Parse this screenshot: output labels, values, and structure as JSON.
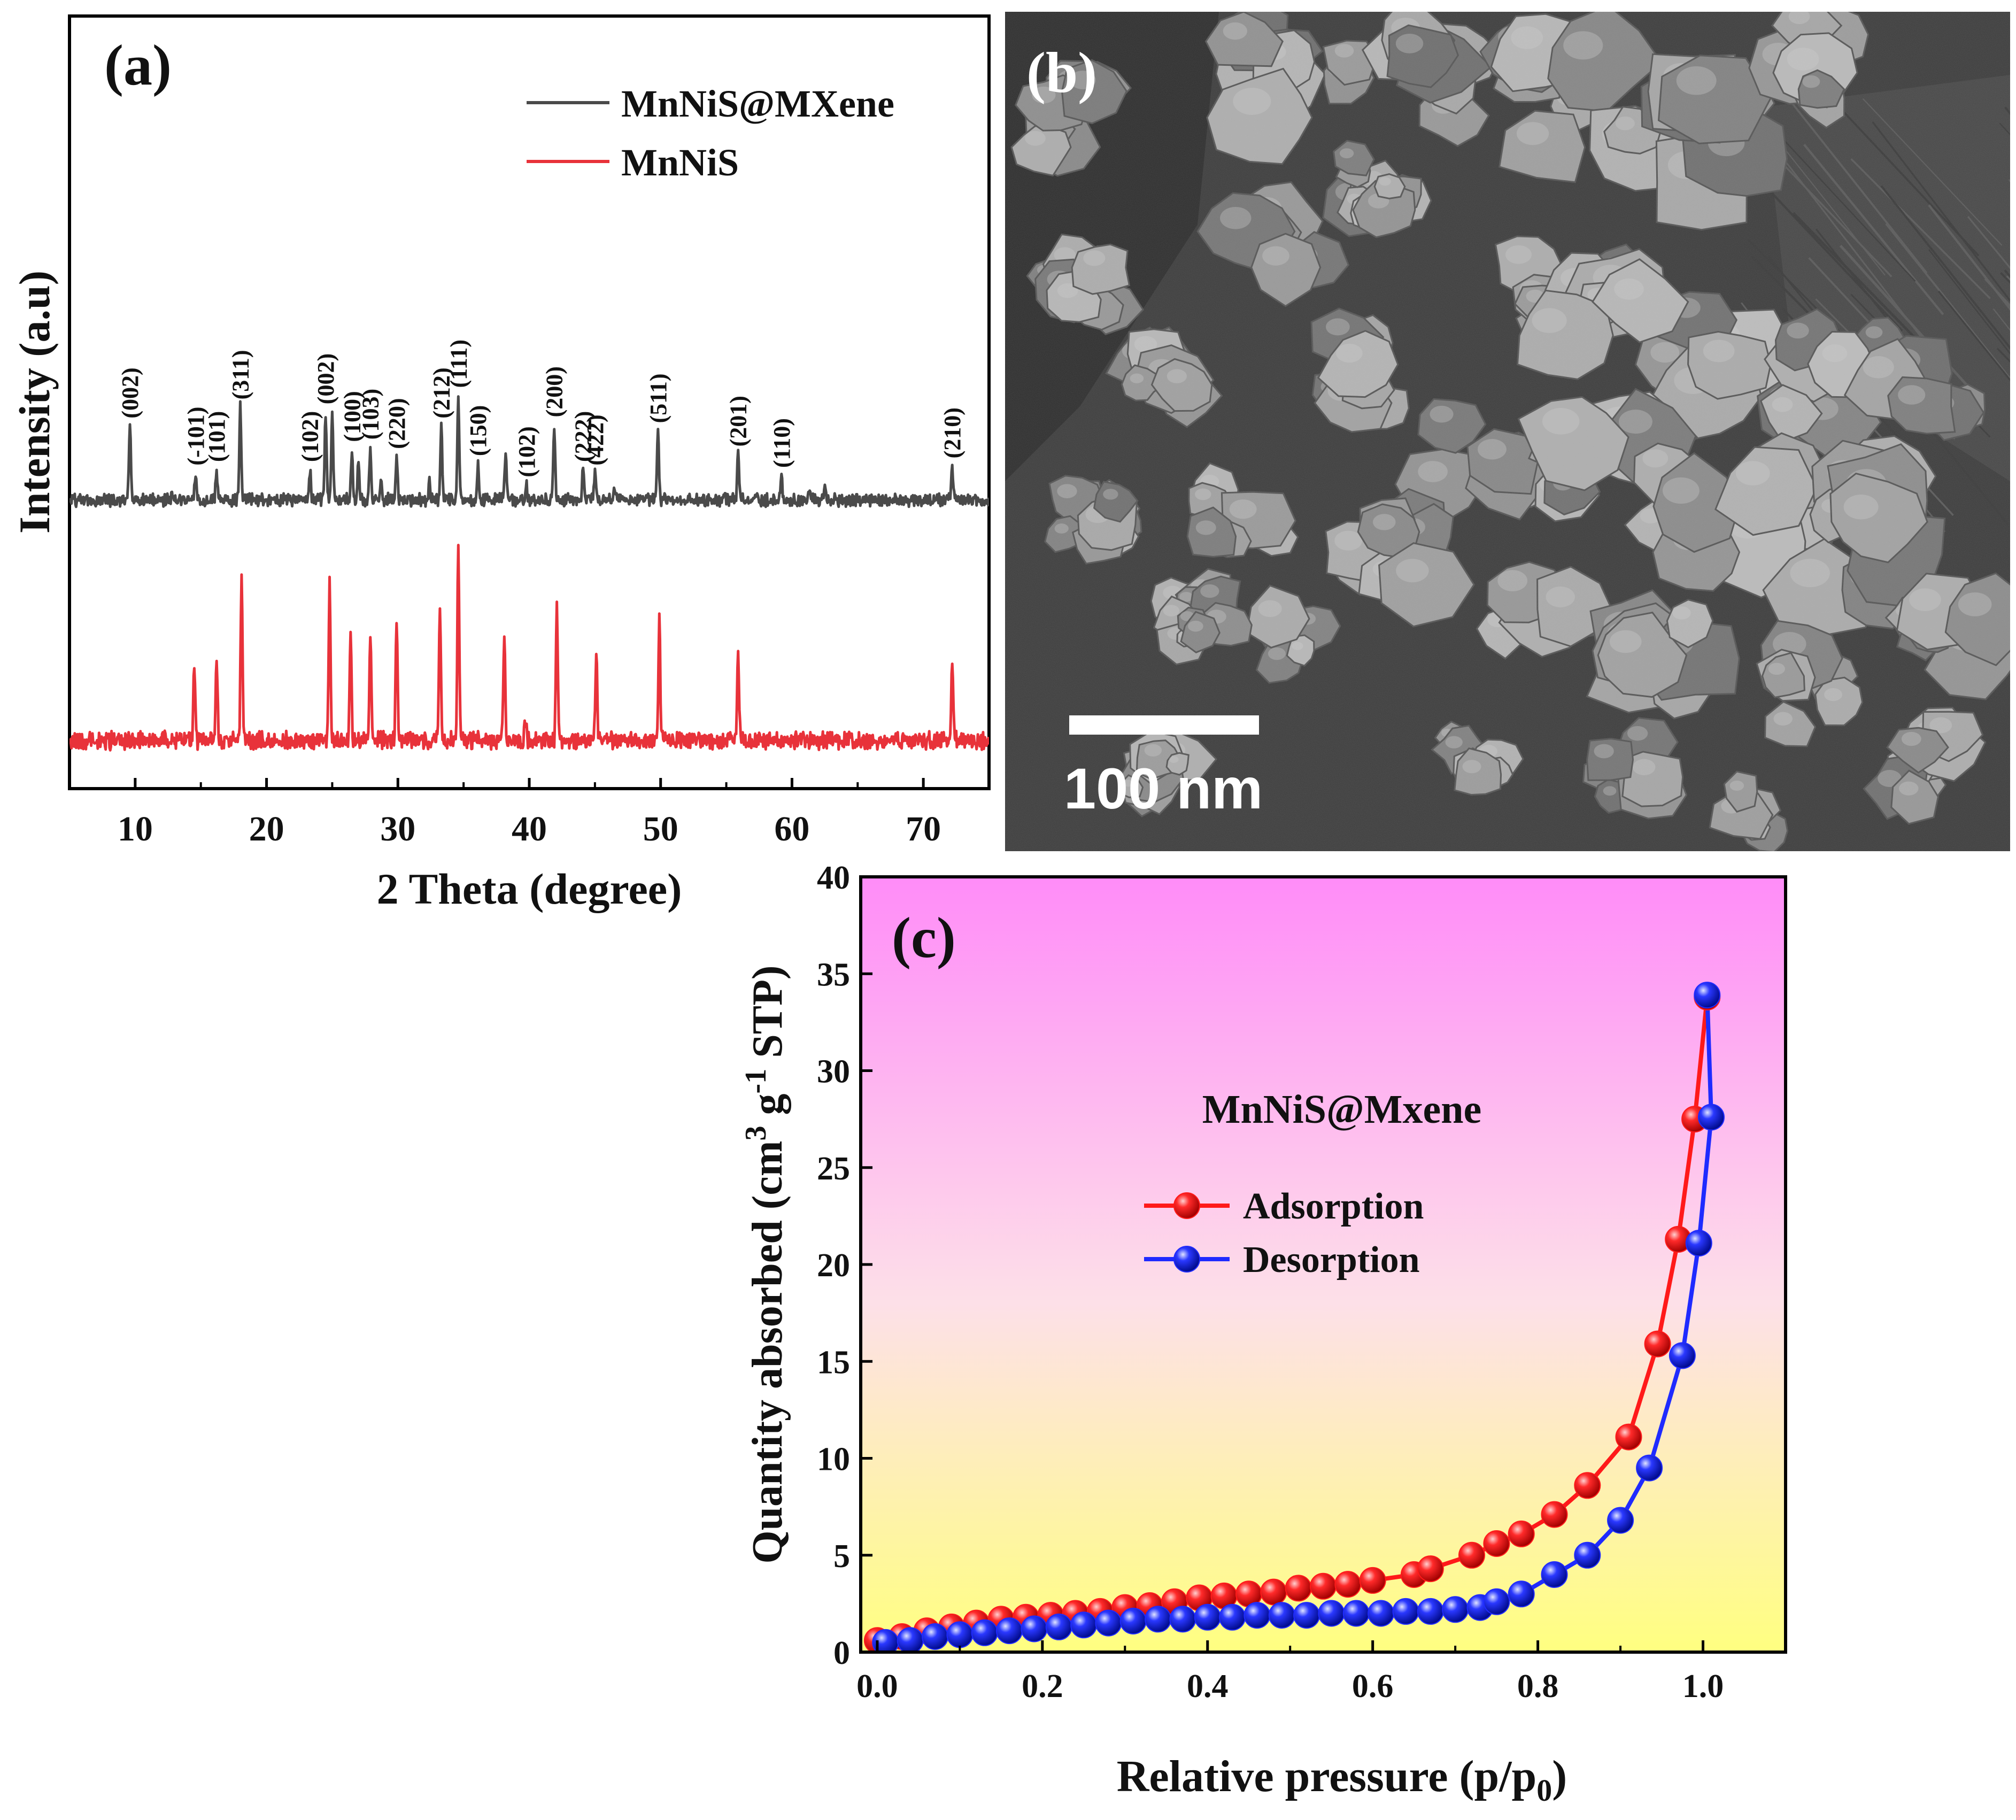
{
  "figure": {
    "panel_a_label": "(a)",
    "panel_b_label": "(b)",
    "panel_c_label": "(c)"
  },
  "sem": {
    "scalebar_label": "100 nm",
    "scalebar_length_nm": 100
  },
  "colors": {
    "mnnis_mxene": "#4a4a4a",
    "mnnis": "#e8323a",
    "adsorption": "#ff1a1a",
    "desorption": "#1f2bff",
    "bg_c_top": "#ff8cf8",
    "bg_c_bottom": "#ffff80"
  },
  "chart_data": [
    {
      "id": "xrd",
      "type": "line",
      "xlabel": "2 Theta (degree)",
      "ylabel": "Intensity (a.u)",
      "xlim": [
        5,
        75
      ],
      "xticks": [
        10,
        20,
        30,
        40,
        50,
        60,
        70
      ],
      "yticks": [],
      "legend_position": "top-right",
      "series": [
        {
          "name": "MnNiS@MXene",
          "color": "#4a4a4a",
          "peaks": [
            {
              "x": 9.6,
              "h": 0.62,
              "label": "(002)"
            },
            {
              "x": 12.8,
              "h": 0.04,
              "label": ""
            },
            {
              "x": 14.6,
              "h": 0.22,
              "label": "(-101)"
            },
            {
              "x": 16.2,
              "h": 0.25,
              "label": "(101)"
            },
            {
              "x": 18.0,
              "h": 0.78,
              "label": "(311)"
            },
            {
              "x": 23.3,
              "h": 0.25,
              "label": "(102)"
            },
            {
              "x": 24.5,
              "h": 0.74,
              "label": "(002)"
            },
            {
              "x": 25.0,
              "h": 0.76,
              "label": ""
            },
            {
              "x": 26.5,
              "h": 0.42,
              "label": "(100)"
            },
            {
              "x": 27.0,
              "h": 0.35,
              "label": ""
            },
            {
              "x": 27.9,
              "h": 0.44,
              "label": "(103)"
            },
            {
              "x": 28.7,
              "h": 0.18,
              "label": ""
            },
            {
              "x": 29.9,
              "h": 0.36,
              "label": "(220)"
            },
            {
              "x": 32.4,
              "h": 0.18,
              "label": ""
            },
            {
              "x": 33.3,
              "h": 0.62,
              "label": "(212)"
            },
            {
              "x": 34.6,
              "h": 0.88,
              "label": "(111)"
            },
            {
              "x": 36.1,
              "h": 0.3,
              "label": "(150)"
            },
            {
              "x": 38.2,
              "h": 0.4,
              "label": ""
            },
            {
              "x": 39.8,
              "h": 0.12,
              "label": "(102)"
            },
            {
              "x": 41.9,
              "h": 0.63,
              "label": "(200)"
            },
            {
              "x": 44.1,
              "h": 0.25,
              "label": "(222)"
            },
            {
              "x": 45.0,
              "h": 0.22,
              "label": "(422)"
            },
            {
              "x": 46.5,
              "h": 0.08,
              "label": ""
            },
            {
              "x": 49.8,
              "h": 0.58,
              "label": "(511)"
            },
            {
              "x": 54.8,
              "h": 0.06,
              "label": ""
            },
            {
              "x": 55.9,
              "h": 0.38,
              "label": "(201)"
            },
            {
              "x": 59.2,
              "h": 0.2,
              "label": "(110)"
            },
            {
              "x": 61.3,
              "h": 0.1,
              "label": ""
            },
            {
              "x": 62.5,
              "h": 0.12,
              "label": ""
            },
            {
              "x": 72.2,
              "h": 0.28,
              "label": "(210)"
            }
          ]
        },
        {
          "name": "MnNiS",
          "color": "#e8323a",
          "peaks": [
            {
              "x": 14.5,
              "h": 0.44
            },
            {
              "x": 16.2,
              "h": 0.48
            },
            {
              "x": 18.1,
              "h": 1.05
            },
            {
              "x": 24.8,
              "h": 0.95
            },
            {
              "x": 26.4,
              "h": 0.65
            },
            {
              "x": 27.9,
              "h": 0.66
            },
            {
              "x": 29.9,
              "h": 0.77
            },
            {
              "x": 33.2,
              "h": 0.8
            },
            {
              "x": 34.6,
              "h": 1.22
            },
            {
              "x": 38.1,
              "h": 0.67
            },
            {
              "x": 39.7,
              "h": 0.15
            },
            {
              "x": 42.1,
              "h": 0.83
            },
            {
              "x": 45.1,
              "h": 0.53
            },
            {
              "x": 49.9,
              "h": 0.74
            },
            {
              "x": 55.9,
              "h": 0.55
            },
            {
              "x": 72.2,
              "h": 0.5
            }
          ]
        }
      ]
    },
    {
      "id": "bet",
      "type": "line",
      "title": "MnNiS@Mxene",
      "xlabel": "Relative pressure (p/p",
      "xlabel_sub": "0",
      "xlabel_end": ")",
      "ylabel_pre": "Quantity absorbed (cm",
      "ylabel_sup1": "3",
      "ylabel_mid": " g",
      "ylabel_sup2": "-1",
      "ylabel_end": " STP)",
      "xlim": [
        -0.02,
        1.1
      ],
      "ylim": [
        0,
        40
      ],
      "xticks": [
        "0.0",
        "0.2",
        "0.4",
        "0.6",
        "0.8",
        "1.0"
      ],
      "yticks": [
        "0",
        "5",
        "10",
        "15",
        "20",
        "25",
        "30",
        "35",
        "40"
      ],
      "legend_position": "center-left",
      "series": [
        {
          "name": "Adsorption",
          "color": "#ff1a1a",
          "x": [
            0.0,
            0.03,
            0.06,
            0.09,
            0.12,
            0.15,
            0.18,
            0.21,
            0.24,
            0.27,
            0.3,
            0.33,
            0.36,
            0.39,
            0.42,
            0.45,
            0.48,
            0.51,
            0.54,
            0.57,
            0.6,
            0.65,
            0.67,
            0.72,
            0.75,
            0.78,
            0.82,
            0.86,
            0.91,
            0.945,
            0.97,
            0.99,
            1.005
          ],
          "y": [
            0.6,
            0.8,
            1.1,
            1.3,
            1.5,
            1.7,
            1.8,
            1.9,
            2.0,
            2.1,
            2.3,
            2.4,
            2.6,
            2.8,
            2.9,
            3.0,
            3.1,
            3.3,
            3.4,
            3.5,
            3.7,
            4.0,
            4.3,
            5.0,
            5.6,
            6.1,
            7.1,
            8.6,
            11.1,
            15.9,
            21.3,
            27.5,
            33.8
          ]
        },
        {
          "name": "Desorption",
          "color": "#1f2bff",
          "x": [
            0.01,
            0.04,
            0.07,
            0.1,
            0.13,
            0.16,
            0.19,
            0.22,
            0.25,
            0.28,
            0.31,
            0.34,
            0.37,
            0.4,
            0.43,
            0.46,
            0.49,
            0.52,
            0.55,
            0.58,
            0.61,
            0.64,
            0.67,
            0.7,
            0.73,
            0.75,
            0.78,
            0.82,
            0.86,
            0.9,
            0.935,
            0.975,
            0.995,
            1.01,
            1.005
          ],
          "y": [
            0.5,
            0.6,
            0.8,
            0.9,
            1.0,
            1.1,
            1.2,
            1.3,
            1.4,
            1.5,
            1.6,
            1.7,
            1.7,
            1.8,
            1.8,
            1.9,
            1.9,
            1.9,
            2.0,
            2.0,
            2.0,
            2.1,
            2.1,
            2.2,
            2.3,
            2.6,
            3.0,
            4.0,
            5.0,
            6.8,
            9.5,
            15.3,
            21.1,
            27.6,
            33.9
          ]
        }
      ]
    }
  ]
}
